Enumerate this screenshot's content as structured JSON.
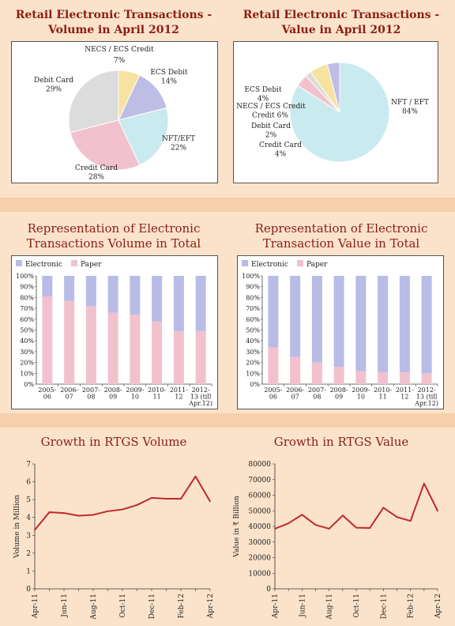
{
  "colors": {
    "electronic": "#b8bce6",
    "paper": "#f1c2cd",
    "line": "#c0282d",
    "title": "#8c1d13",
    "pie": [
      "#f6e3a0",
      "#bdbde6",
      "#c9eaee",
      "#f1c2cd",
      "#dcdcdc"
    ]
  },
  "chart_data": [
    {
      "type": "pie",
      "title": "Retail Electronic Transactions - Volume in April 2012",
      "title_lines": [
        "Retail Electronic Transactions -",
        "Volume in April 2012"
      ],
      "slices": [
        {
          "name": "NECS / ECS Credit",
          "value": 7,
          "label": "7%"
        },
        {
          "name": "ECS Debit",
          "value": 14,
          "label": "14%"
        },
        {
          "name": "NFT/EFT",
          "value": 22,
          "label": "22%"
        },
        {
          "name": "Credit Card",
          "value": 28,
          "label": "28%"
        },
        {
          "name": "Debit Card",
          "value": 29,
          "label": "29%"
        }
      ]
    },
    {
      "type": "pie",
      "title": "Retail Electronic Transactions - Value in April 2012",
      "title_lines": [
        "Retail Electronic Transactions -",
        "Value in April 2012"
      ],
      "slices": [
        {
          "name": "NFT / EFT",
          "value": 84,
          "label": "84%"
        },
        {
          "name": "Credit Card",
          "value": 4,
          "label": "4%"
        },
        {
          "name": "Debit Card",
          "value": 2,
          "label": "2%"
        },
        {
          "name": "NECS / ECS Credit",
          "value": 6,
          "label": "6%"
        },
        {
          "name": "ECS Debit",
          "value": 4,
          "label": "4%"
        }
      ]
    },
    {
      "type": "bar",
      "stacked": true,
      "title": "Representation of Electronic Transactions Volume in Total",
      "title_lines": [
        "Representation of Electronic",
        "Transactions Volume in Total"
      ],
      "categories": [
        [
          "2005-",
          "06"
        ],
        [
          "2006-",
          "07"
        ],
        [
          "2007-",
          "08"
        ],
        [
          "2008-",
          "09"
        ],
        [
          "2009-",
          "10"
        ],
        [
          "2010-",
          "11"
        ],
        [
          "2011-",
          "12"
        ],
        [
          "2012-",
          "13 (till",
          "Apr.12)"
        ]
      ],
      "series": [
        {
          "name": "Electronic",
          "values": [
            19,
            23,
            28,
            34,
            36,
            42,
            51,
            51
          ]
        },
        {
          "name": "Paper",
          "values": [
            81,
            77,
            72,
            66,
            64,
            58,
            49,
            49
          ]
        }
      ],
      "yticks": [
        "0%",
        "10%",
        "20%",
        "30%",
        "40%",
        "50%",
        "60%",
        "70%",
        "80%",
        "90%",
        "100%"
      ],
      "ylim": [
        0,
        100
      ],
      "legend": "top-left"
    },
    {
      "type": "bar",
      "stacked": true,
      "title": "Representation of Electronic Transaction Value in Total",
      "title_lines": [
        "Representation of Electronic",
        "Transaction Value in Total"
      ],
      "categories": [
        [
          "2005-",
          "06"
        ],
        [
          "2006-",
          "07"
        ],
        [
          "2007-",
          "08"
        ],
        [
          "2008-",
          "09"
        ],
        [
          "2009-",
          "10"
        ],
        [
          "2010-",
          "11"
        ],
        [
          "2011-",
          "12"
        ],
        [
          "2012-",
          "13 (till",
          "Apr.12)"
        ]
      ],
      "series": [
        {
          "name": "Electronic",
          "values": [
            66,
            75,
            80,
            84,
            88,
            89,
            89,
            90
          ]
        },
        {
          "name": "Paper",
          "values": [
            34,
            25,
            20,
            16,
            12,
            11,
            11,
            10
          ]
        }
      ],
      "yticks": [
        "0%",
        "10%",
        "20%",
        "30%",
        "40%",
        "50%",
        "60%",
        "70%",
        "80%",
        "90%",
        "100%"
      ],
      "ylim": [
        0,
        100
      ],
      "legend": "top-left"
    },
    {
      "type": "line",
      "title": "Growth in RTGS Volume",
      "ylabel": "Volume in Million",
      "x": [
        "Apr-11",
        "May-11",
        "Jun-11",
        "Jul-11",
        "Aug-11",
        "Sep-11",
        "Oct-11",
        "Nov-11",
        "Dec-11",
        "Jan-12",
        "Feb-12",
        "Mar-12",
        "Apr-12"
      ],
      "xtick_labels": [
        "Apr-11",
        "Jun-11",
        "Aug-11",
        "Oct-11",
        "Dec-11",
        "Feb-12",
        "Apr-12"
      ],
      "values": [
        3.3,
        4.3,
        4.25,
        4.1,
        4.15,
        4.35,
        4.45,
        4.7,
        5.1,
        5.05,
        5.05,
        6.3,
        4.9
      ],
      "ylim": [
        0,
        7
      ],
      "yticks": [
        0,
        1,
        2,
        3,
        4,
        5,
        6,
        7
      ]
    },
    {
      "type": "line",
      "title": "Growth in RTGS Value",
      "ylabel": "Value in ₹ Billion",
      "x": [
        "Apr-11",
        "May-11",
        "Jun-11",
        "Jul-11",
        "Aug-11",
        "Sep-11",
        "Oct-11",
        "Nov-11",
        "Dec-11",
        "Jan-12",
        "Feb-12",
        "Mar-12",
        "Apr-12"
      ],
      "xtick_labels": [
        "Apr-11",
        "Jun-11",
        "Aug-11",
        "Oct-11",
        "Dec-11",
        "Feb-12",
        "Apr-12"
      ],
      "values": [
        38500,
        42000,
        47500,
        41000,
        38500,
        47000,
        39200,
        39000,
        52000,
        46000,
        43500,
        67500,
        50000
      ],
      "ylim": [
        0,
        80000
      ],
      "yticks": [
        0,
        10000,
        20000,
        30000,
        40000,
        50000,
        60000,
        70000,
        80000
      ]
    }
  ]
}
